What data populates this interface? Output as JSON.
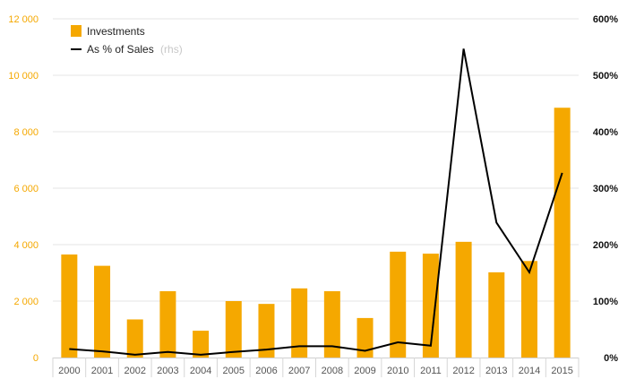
{
  "chart_data": {
    "type": "bar+line",
    "categories": [
      "2000",
      "2001",
      "2002",
      "2003",
      "2004",
      "2005",
      "2006",
      "2007",
      "2008",
      "2009",
      "2010",
      "2011",
      "2012",
      "2013",
      "2014",
      "2015"
    ],
    "series": [
      {
        "name": "Investments",
        "type": "bar",
        "axis": "left",
        "color": "#f5a800",
        "values": [
          3650,
          3250,
          1350,
          2350,
          950,
          2000,
          1900,
          2450,
          2350,
          1400,
          3750,
          3680,
          4100,
          3020,
          3420,
          8850
        ]
      },
      {
        "name": "As % of Sales",
        "type": "line",
        "axis": "right",
        "color": "#000000",
        "values": [
          15,
          11,
          5,
          10,
          5,
          10,
          14,
          20,
          20,
          12,
          27,
          21,
          547,
          239,
          151,
          327
        ]
      }
    ],
    "legend": {
      "bar_label": "Investments",
      "line_label": "As % of Sales",
      "line_suffix": "(rhs)",
      "placement": "top-left"
    },
    "y_left": {
      "ylim": [
        0,
        12000
      ],
      "ticks": [
        0,
        2000,
        4000,
        6000,
        8000,
        10000,
        12000
      ],
      "tick_labels": [
        "0",
        "2 000",
        "4 000",
        "6 000",
        "8 000",
        "10 000",
        "12 000"
      ],
      "color": "#f5a800"
    },
    "y_right": {
      "ylim": [
        0,
        600
      ],
      "ticks": [
        0,
        100,
        200,
        300,
        400,
        500,
        600
      ],
      "tick_labels": [
        "0%",
        "100%",
        "200%",
        "300%",
        "400%",
        "500%",
        "600%"
      ],
      "color": "#111111"
    },
    "grid": true
  }
}
